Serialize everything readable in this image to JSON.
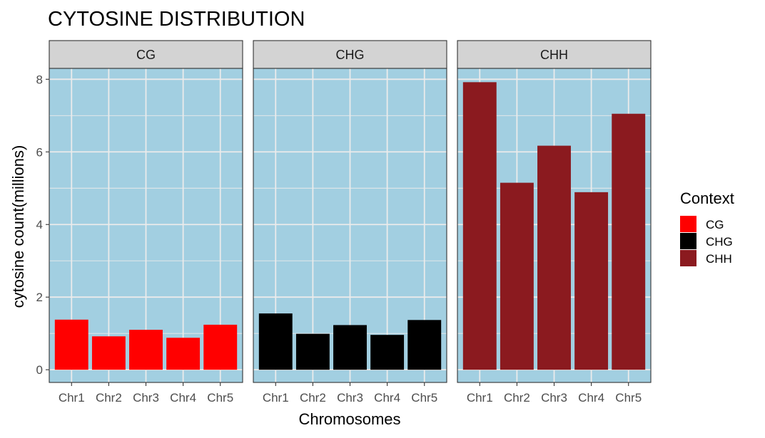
{
  "chart_data": {
    "type": "bar",
    "title": "CYTOSINE DISTRIBUTION",
    "xlabel": "Chromosomes",
    "ylabel": "cytosine count(millions)",
    "ylim": [
      -0.35,
      8.3
    ],
    "yticks": [
      0,
      2,
      4,
      6,
      8
    ],
    "categories": [
      "Chr1",
      "Chr2",
      "Chr3",
      "Chr4",
      "Chr5"
    ],
    "grid": true,
    "legend_position": "right",
    "panel_background": "#a2cfe1",
    "legend": {
      "title": "Context",
      "entries": [
        {
          "label": "CG",
          "color": "#ff0000"
        },
        {
          "label": "CHG",
          "color": "#000000"
        },
        {
          "label": "CHH",
          "color": "#8b1a1f"
        }
      ]
    },
    "panels": [
      {
        "name": "CG",
        "color": "#ff0000",
        "values": [
          1.38,
          0.92,
          1.1,
          0.88,
          1.24
        ]
      },
      {
        "name": "CHG",
        "color": "#000000",
        "values": [
          1.55,
          0.99,
          1.23,
          0.96,
          1.37
        ]
      },
      {
        "name": "CHH",
        "color": "#8b1a1f",
        "values": [
          7.92,
          5.15,
          6.17,
          4.89,
          7.05
        ]
      }
    ]
  }
}
